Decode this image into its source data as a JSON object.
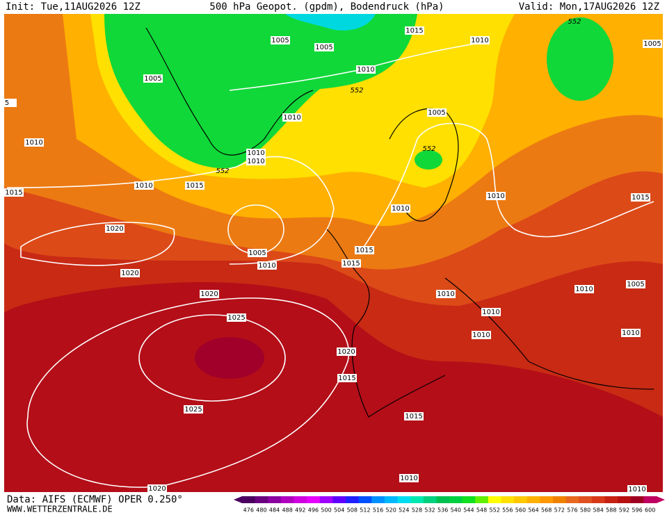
{
  "header": {
    "init": "Init: Tue,11AUG2026 12Z",
    "title": "500 hPa Geopot. (gpdm), Bodendruck (hPa)",
    "valid": "Valid: Mon,17AUG2026 12Z"
  },
  "footer": {
    "source": "Data: AIFS (ECMWF) OPER 0.250°",
    "website": "WWW.WETTERZENTRALE.DE"
  },
  "isobar_labels": [
    "1005",
    "1005",
    "1010",
    "1015",
    "1010",
    "1005",
    "1005",
    "1010",
    "1005",
    "1010",
    "1010",
    "1010",
    "1010",
    "1015",
    "1015",
    "1010",
    "1010",
    "1015",
    "1020",
    "1005",
    "1010",
    "1015",
    "1015",
    "1020",
    "1010",
    "1010",
    "1005",
    "1020",
    "1010",
    "1025",
    "1010",
    "1010",
    "1020",
    "1015",
    "1025",
    "1015",
    "1010",
    "1020",
    "1010",
    "5"
  ],
  "geopotential_labels": [
    "552",
    "552",
    "552",
    "552"
  ],
  "colorbar": {
    "ticks": [
      476,
      480,
      484,
      488,
      492,
      496,
      500,
      504,
      508,
      512,
      516,
      520,
      524,
      528,
      532,
      536,
      540,
      544,
      548,
      552,
      556,
      560,
      564,
      568,
      572,
      576,
      580,
      584,
      588,
      592,
      596,
      600
    ],
    "colors": [
      "#4b0060",
      "#6a0080",
      "#8a00a0",
      "#b000c0",
      "#d000e0",
      "#e800ff",
      "#a000ff",
      "#6000ff",
      "#2020ff",
      "#0050ff",
      "#0090ff",
      "#00b8ff",
      "#00dcf0",
      "#00e8b0",
      "#00d080",
      "#00c050",
      "#00d040",
      "#10e020",
      "#60f000",
      "#ffff00",
      "#ffe000",
      "#ffc800",
      "#ffb000",
      "#ff9800",
      "#f08000",
      "#e86820",
      "#e05020",
      "#d83818",
      "#c82010",
      "#b80f10",
      "#a00020",
      "#c00060"
    ]
  }
}
